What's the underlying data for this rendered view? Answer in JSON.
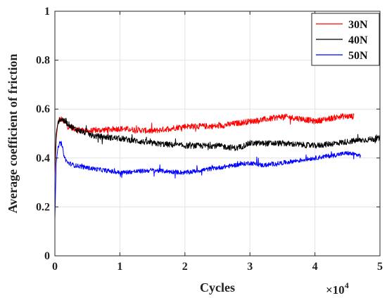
{
  "chart_data": {
    "type": "line",
    "title": "",
    "xlabel": "Cycles",
    "ylabel": "Average coefficient of friction",
    "x_multiplier": "×10",
    "x_multiplier_exp": "4",
    "xlim": [
      0,
      5
    ],
    "ylim": [
      0,
      1
    ],
    "xticks": [
      "0",
      "1",
      "2",
      "3",
      "4",
      "5"
    ],
    "yticks": [
      "0",
      "0.2",
      "0.4",
      "0.6",
      "0.8",
      "1"
    ],
    "grid": true,
    "legend_position": "top-right",
    "series": [
      {
        "name": "30N",
        "color": "#ff0000",
        "x": [
          0,
          0.02,
          0.05,
          0.1,
          0.2,
          0.3,
          0.5,
          1.0,
          1.5,
          2.0,
          2.5,
          3.0,
          3.3,
          3.5,
          3.8,
          4.0,
          4.2,
          4.4,
          4.6
        ],
        "y": [
          0.33,
          0.48,
          0.55,
          0.56,
          0.53,
          0.52,
          0.51,
          0.52,
          0.51,
          0.53,
          0.53,
          0.55,
          0.56,
          0.57,
          0.56,
          0.55,
          0.56,
          0.57,
          0.57
        ]
      },
      {
        "name": "40N",
        "color": "#000000",
        "x": [
          0,
          0.02,
          0.05,
          0.1,
          0.3,
          0.6,
          1.0,
          1.5,
          2.0,
          2.5,
          2.8,
          3.0,
          3.5,
          4.0,
          4.3,
          4.6,
          5.0
        ],
        "y": [
          0.36,
          0.5,
          0.55,
          0.56,
          0.52,
          0.49,
          0.48,
          0.46,
          0.45,
          0.45,
          0.44,
          0.46,
          0.46,
          0.45,
          0.46,
          0.47,
          0.48
        ]
      },
      {
        "name": "50N",
        "color": "#0000ff",
        "x": [
          0,
          0.02,
          0.05,
          0.1,
          0.15,
          0.2,
          0.3,
          0.5,
          1.0,
          1.5,
          2.0,
          2.5,
          3.0,
          3.2,
          3.5,
          4.0,
          4.5,
          4.7
        ],
        "y": [
          0.15,
          0.38,
          0.45,
          0.46,
          0.4,
          0.38,
          0.37,
          0.36,
          0.34,
          0.35,
          0.34,
          0.36,
          0.38,
          0.37,
          0.38,
          0.4,
          0.42,
          0.41
        ]
      }
    ]
  }
}
